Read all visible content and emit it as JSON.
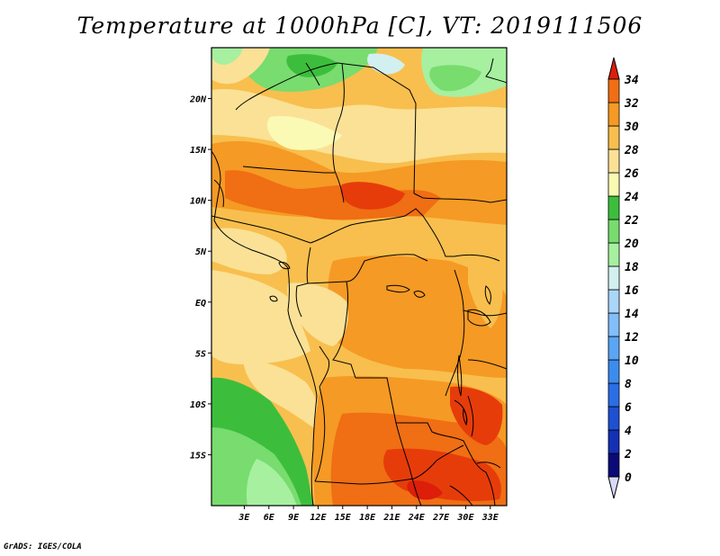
{
  "title": "Temperature at 1000hPa [C], VT: 2019111506",
  "credit": "GrADS: IGES/COLA",
  "map": {
    "lon_range": [
      -1,
      35
    ],
    "lat_range": [
      -20,
      25
    ],
    "x_ticks": [
      {
        "lon": 3,
        "label": "3E"
      },
      {
        "lon": 6,
        "label": "6E"
      },
      {
        "lon": 9,
        "label": "9E"
      },
      {
        "lon": 12,
        "label": "12E"
      },
      {
        "lon": 15,
        "label": "15E"
      },
      {
        "lon": 18,
        "label": "18E"
      },
      {
        "lon": 21,
        "label": "21E"
      },
      {
        "lon": 24,
        "label": "24E"
      },
      {
        "lon": 27,
        "label": "27E"
      },
      {
        "lon": 30,
        "label": "30E"
      },
      {
        "lon": 33,
        "label": "33E"
      }
    ],
    "y_ticks": [
      {
        "lat": 20,
        "label": "20N"
      },
      {
        "lat": 15,
        "label": "15N"
      },
      {
        "lat": 10,
        "label": "10N"
      },
      {
        "lat": 5,
        "label": "5N"
      },
      {
        "lat": 0,
        "label": "EQ"
      },
      {
        "lat": -5,
        "label": "5S"
      },
      {
        "lat": -10,
        "label": "10S"
      },
      {
        "lat": -15,
        "label": "15S"
      }
    ]
  },
  "colorbar": {
    "levels": [
      {
        "value": 0,
        "label": "0",
        "color": "#0a0a78"
      },
      {
        "value": 2,
        "label": "2",
        "color": "#1430b4"
      },
      {
        "value": 4,
        "label": "4",
        "color": "#1e50d2"
      },
      {
        "value": 6,
        "label": "6",
        "color": "#2a6ee6"
      },
      {
        "value": 8,
        "label": "8",
        "color": "#3c8cf0"
      },
      {
        "value": 10,
        "label": "10",
        "color": "#5aa5f5"
      },
      {
        "value": 12,
        "label": "12",
        "color": "#82bef8"
      },
      {
        "value": 14,
        "label": "14",
        "color": "#aad6fa"
      },
      {
        "value": 16,
        "label": "16",
        "color": "#d2f0f0"
      },
      {
        "value": 18,
        "label": "18",
        "color": "#a6f0a0"
      },
      {
        "value": 20,
        "label": "20",
        "color": "#78dc6e"
      },
      {
        "value": 22,
        "label": "22",
        "color": "#3cbe3c"
      },
      {
        "value": 24,
        "label": "24",
        "color": "#fafab4"
      },
      {
        "value": 26,
        "label": "26",
        "color": "#fae196"
      },
      {
        "value": 28,
        "label": "28",
        "color": "#f8bf4e"
      },
      {
        "value": 30,
        "label": "30",
        "color": "#f59a24"
      },
      {
        "value": 32,
        "label": "32",
        "color": "#f06e14"
      },
      {
        "value": 34,
        "label": "34",
        "color": "#e63c0a"
      }
    ],
    "under_color": "#d8d8f8",
    "over_color": "#dc1e0a"
  }
}
